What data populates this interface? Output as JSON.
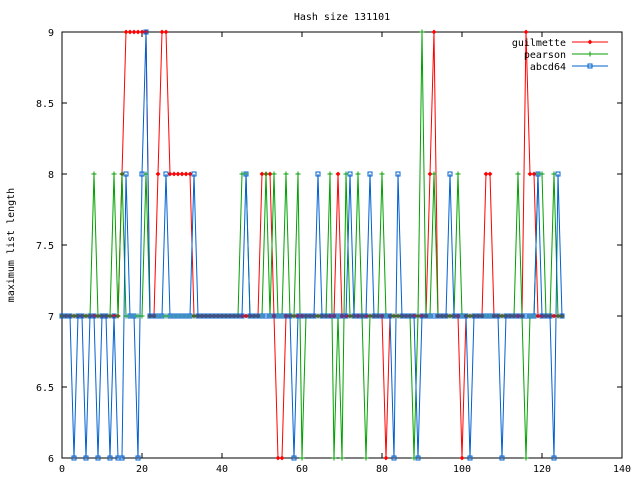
{
  "chart_data": {
    "type": "line",
    "title": "Hash size 131101",
    "xlabel": "",
    "ylabel": "maximum list length",
    "xlim": [
      0,
      140
    ],
    "ylim": [
      6,
      9
    ],
    "xticks": [
      "0",
      "20",
      "40",
      "60",
      "80",
      "100",
      "120",
      "140"
    ],
    "yticks": [
      "6",
      "6.5",
      "7",
      "7.5",
      "8",
      "8.5",
      "9"
    ],
    "grid": false,
    "legend": "top-right",
    "series": [
      {
        "name": "guilmette",
        "color": "#ff0000",
        "marker": "diamond",
        "x": [
          0,
          1,
          2,
          3,
          4,
          5,
          6,
          7,
          8,
          9,
          10,
          11,
          12,
          13,
          14,
          15,
          16,
          17,
          18,
          19,
          20,
          21,
          22,
          23,
          24,
          25,
          26,
          27,
          28,
          29,
          30,
          31,
          32,
          33,
          34,
          35,
          36,
          37,
          38,
          39,
          40,
          41,
          42,
          43,
          44,
          45,
          46,
          47,
          48,
          49,
          50,
          51,
          52,
          53,
          54,
          55,
          56,
          57,
          58,
          59,
          60,
          61,
          62,
          63,
          64,
          65,
          66,
          67,
          68,
          69,
          70,
          71,
          72,
          73,
          74,
          75,
          76,
          77,
          78,
          79,
          80,
          81,
          82,
          83,
          84,
          85,
          86,
          87,
          88,
          89,
          90,
          91,
          92,
          93,
          94,
          95,
          96,
          97,
          98,
          99,
          100,
          101,
          102,
          103,
          104,
          105,
          106,
          107,
          108,
          109,
          110,
          111,
          112,
          113,
          114,
          115,
          116,
          117,
          118,
          119,
          120,
          121,
          122,
          123,
          124,
          125
        ],
        "values": [
          7,
          7,
          7,
          7,
          7,
          7,
          7,
          7,
          7,
          7,
          7,
          7,
          7,
          7,
          7,
          8,
          9,
          9,
          9,
          9,
          9,
          9,
          7,
          7,
          8,
          9,
          9,
          8,
          8,
          8,
          8,
          8,
          8,
          7,
          7,
          7,
          7,
          7,
          7,
          7,
          7,
          7,
          7,
          7,
          7,
          7,
          7,
          7,
          7,
          7,
          8,
          8,
          8,
          7,
          6,
          6,
          7,
          7,
          7,
          7,
          7,
          7,
          7,
          7,
          7,
          7,
          7,
          7,
          7,
          8,
          7,
          7,
          7,
          7,
          7,
          7,
          7,
          7,
          7,
          7,
          7,
          6,
          7,
          7,
          7,
          7,
          7,
          7,
          7,
          7,
          7,
          7,
          8,
          9,
          7,
          7,
          7,
          7,
          7,
          7,
          6,
          7,
          7,
          7,
          7,
          7,
          8,
          8,
          7,
          7,
          7,
          7,
          7,
          7,
          7,
          7,
          9,
          8,
          8,
          7,
          7,
          7,
          7,
          7,
          7,
          7
        ]
      },
      {
        "name": "pearson",
        "color": "#00a000",
        "marker": "plus",
        "x": [
          0,
          1,
          2,
          3,
          4,
          5,
          6,
          7,
          8,
          9,
          10,
          11,
          12,
          13,
          14,
          15,
          16,
          17,
          18,
          19,
          20,
          21,
          22,
          23,
          24,
          25,
          26,
          27,
          28,
          29,
          30,
          31,
          32,
          33,
          34,
          35,
          36,
          37,
          38,
          39,
          40,
          41,
          42,
          43,
          44,
          45,
          46,
          47,
          48,
          49,
          50,
          51,
          52,
          53,
          54,
          55,
          56,
          57,
          58,
          59,
          60,
          61,
          62,
          63,
          64,
          65,
          66,
          67,
          68,
          69,
          70,
          71,
          72,
          73,
          74,
          75,
          76,
          77,
          78,
          79,
          80,
          81,
          82,
          83,
          84,
          85,
          86,
          87,
          88,
          89,
          90,
          91,
          92,
          93,
          94,
          95,
          96,
          97,
          98,
          99,
          100,
          101,
          102,
          103,
          104,
          105,
          106,
          107,
          108,
          109,
          110,
          111,
          112,
          113,
          114,
          115,
          116,
          117,
          118,
          119,
          120,
          121,
          122,
          123,
          124,
          125
        ],
        "values": [
          7,
          7,
          7,
          7,
          7,
          7,
          7,
          7,
          8,
          7,
          7,
          7,
          7,
          8,
          7,
          8,
          7,
          7,
          7,
          7,
          7,
          8,
          7,
          7,
          7,
          7,
          7,
          7,
          7,
          7,
          7,
          7,
          7,
          7,
          7,
          7,
          7,
          7,
          7,
          7,
          7,
          7,
          7,
          7,
          7,
          8,
          8,
          7,
          7,
          7,
          7,
          8,
          7,
          8,
          7,
          7,
          8,
          7,
          7,
          8,
          6,
          7,
          7,
          7,
          7,
          7,
          7,
          8,
          6,
          7,
          6,
          8,
          7,
          7,
          8,
          7,
          6,
          7,
          7,
          7,
          8,
          7,
          7,
          7,
          7,
          7,
          7,
          7,
          6,
          7,
          9,
          7,
          7,
          8,
          7,
          7,
          7,
          7,
          7,
          8,
          7,
          7,
          7,
          7,
          7,
          7,
          7,
          7,
          7,
          7,
          7,
          7,
          7,
          7,
          8,
          7,
          6,
          7,
          7,
          8,
          8,
          7,
          7,
          8,
          7,
          7
        ]
      },
      {
        "name": "abcd64",
        "color": "#0060d0",
        "marker": "square",
        "x": [
          0,
          1,
          2,
          3,
          4,
          5,
          6,
          7,
          8,
          9,
          10,
          11,
          12,
          13,
          14,
          15,
          16,
          17,
          18,
          19,
          20,
          21,
          22,
          23,
          24,
          25,
          26,
          27,
          28,
          29,
          30,
          31,
          32,
          33,
          34,
          35,
          36,
          37,
          38,
          39,
          40,
          41,
          42,
          43,
          44,
          45,
          46,
          47,
          48,
          49,
          50,
          51,
          52,
          53,
          54,
          55,
          56,
          57,
          58,
          59,
          60,
          61,
          62,
          63,
          64,
          65,
          66,
          67,
          68,
          69,
          70,
          71,
          72,
          73,
          74,
          75,
          76,
          77,
          78,
          79,
          80,
          81,
          82,
          83,
          84,
          85,
          86,
          87,
          88,
          89,
          90,
          91,
          92,
          93,
          94,
          95,
          96,
          97,
          98,
          99,
          100,
          101,
          102,
          103,
          104,
          105,
          106,
          107,
          108,
          109,
          110,
          111,
          112,
          113,
          114,
          115,
          116,
          117,
          118,
          119,
          120,
          121,
          122,
          123,
          124,
          125
        ],
        "values": [
          7,
          7,
          7,
          6,
          7,
          7,
          6,
          7,
          7,
          6,
          7,
          7,
          6,
          7,
          6,
          6,
          8,
          7,
          7,
          6,
          8,
          9,
          7,
          7,
          7,
          7,
          8,
          7,
          7,
          7,
          7,
          7,
          7,
          8,
          7,
          7,
          7,
          7,
          7,
          7,
          7,
          7,
          7,
          7,
          7,
          7,
          8,
          7,
          7,
          7,
          7,
          7,
          7,
          7,
          7,
          7,
          7,
          7,
          6,
          7,
          7,
          7,
          7,
          7,
          8,
          7,
          7,
          7,
          7,
          7,
          7,
          7,
          8,
          7,
          7,
          7,
          7,
          8,
          7,
          7,
          7,
          7,
          7,
          6,
          8,
          7,
          7,
          7,
          7,
          6,
          7,
          7,
          7,
          7,
          7,
          7,
          7,
          8,
          7,
          7,
          7,
          7,
          6,
          7,
          7,
          7,
          7,
          7,
          7,
          7,
          6,
          7,
          7,
          7,
          7,
          7,
          7,
          7,
          7,
          8,
          7,
          7,
          7,
          6,
          8,
          7
        ]
      }
    ]
  }
}
